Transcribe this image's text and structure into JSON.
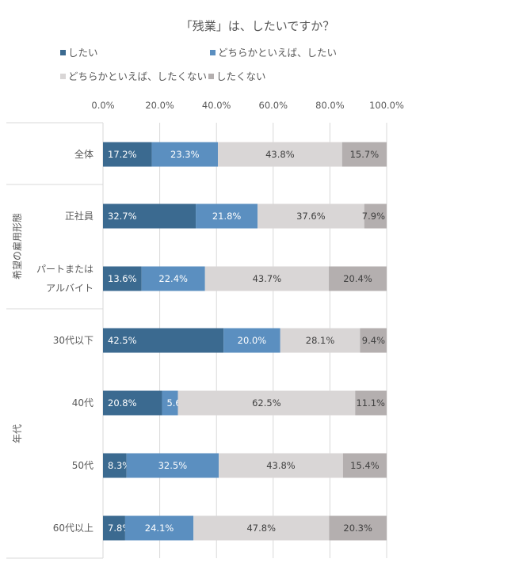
{
  "chart_data": {
    "type": "bar",
    "orientation": "horizontal",
    "stacked": "percent",
    "title": "「残業」は、したいですか？",
    "xlim": [
      0,
      100
    ],
    "xticks": [
      "0.0%",
      "20.0%",
      "40.0%",
      "60.0%",
      "80.0%",
      "100.0%"
    ],
    "grid": true,
    "legend_position": "top",
    "groups": [
      {
        "label": "",
        "categories": [
          "全体"
        ]
      },
      {
        "label": "希望の雇用形態",
        "categories": [
          "正社員",
          "パートまたは アルバイト"
        ]
      },
      {
        "label": "年代",
        "categories": [
          "30代以下",
          "40代",
          "50代",
          "60代以上"
        ]
      }
    ],
    "categories": [
      "全体",
      "正社員",
      "パートまたは\nアルバイト",
      "30代以下",
      "40代",
      "50代",
      "60代以上"
    ],
    "series": [
      {
        "name": "したい",
        "color": "#3b6a90",
        "label_color": "#ffffff",
        "values": [
          17.2,
          32.7,
          13.6,
          42.5,
          20.8,
          8.3,
          7.8
        ]
      },
      {
        "name": "どちらかといえば、したい",
        "color": "#5b8fc0",
        "label_color": "#ffffff",
        "values": [
          23.3,
          21.8,
          22.4,
          20.0,
          5.6,
          32.5,
          24.1
        ]
      },
      {
        "name": "どちらかといえば、したくない",
        "color": "#d9d6d6",
        "label_color": "#404040",
        "values": [
          43.8,
          37.6,
          43.7,
          28.1,
          62.5,
          43.8,
          47.8
        ]
      },
      {
        "name": "したくない",
        "color": "#b4afaf",
        "label_color": "#404040",
        "values": [
          15.7,
          7.9,
          20.4,
          9.4,
          11.1,
          15.4,
          20.3
        ]
      }
    ]
  }
}
